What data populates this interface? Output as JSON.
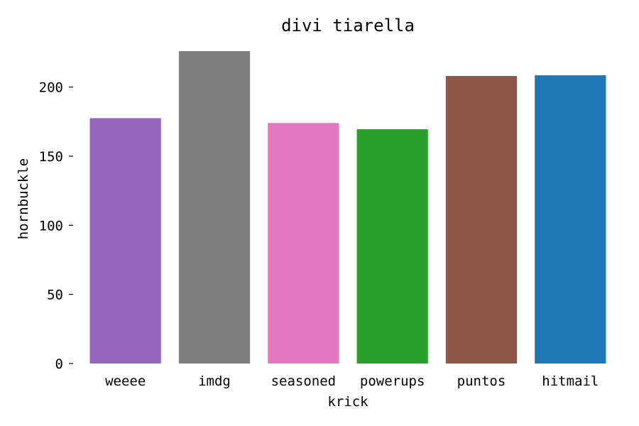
{
  "chart_data": {
    "type": "bar",
    "title": "divi tiarella",
    "xlabel": "krick",
    "ylabel": "hornbuckle",
    "categories": [
      "weeee",
      "imdg",
      "seasoned",
      "powerups",
      "puntos",
      "hitmail"
    ],
    "values": [
      177.5,
      226,
      174,
      169.5,
      208,
      208.5
    ],
    "colors": [
      "#9467bd",
      "#7f7f7f",
      "#e377c2",
      "#2ca02c",
      "#8c564b",
      "#1f77b4"
    ],
    "ylim": [
      0,
      226
    ],
    "yticks": [
      0,
      50,
      100,
      150,
      200
    ],
    "grid": false,
    "legend": "none"
  }
}
